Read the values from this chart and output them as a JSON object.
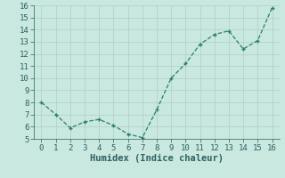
{
  "x": [
    0,
    1,
    2,
    3,
    4,
    5,
    6,
    7,
    8,
    9,
    10,
    11,
    12,
    13,
    14,
    15,
    16
  ],
  "y": [
    8.0,
    7.0,
    5.9,
    6.4,
    6.6,
    6.1,
    5.4,
    5.1,
    7.4,
    10.0,
    11.2,
    12.8,
    13.6,
    13.9,
    12.4,
    13.1,
    15.8
  ],
  "xlabel": "Humidex (Indice chaleur)",
  "xlim": [
    -0.5,
    16.5
  ],
  "ylim": [
    5,
    16
  ],
  "yticks": [
    5,
    6,
    7,
    8,
    9,
    10,
    11,
    12,
    13,
    14,
    15,
    16
  ],
  "xticks": [
    0,
    1,
    2,
    3,
    4,
    5,
    6,
    7,
    8,
    9,
    10,
    11,
    12,
    13,
    14,
    15,
    16
  ],
  "line_color": "#2e7d6e",
  "marker_color": "#2e7d6e",
  "bg_color": "#c8e8e0",
  "grid_color": "#b0cec8",
  "tick_label_color": "#2e6060",
  "xlabel_color": "#2e6060",
  "xlabel_fontsize": 7.5,
  "tick_fontsize": 6.5
}
